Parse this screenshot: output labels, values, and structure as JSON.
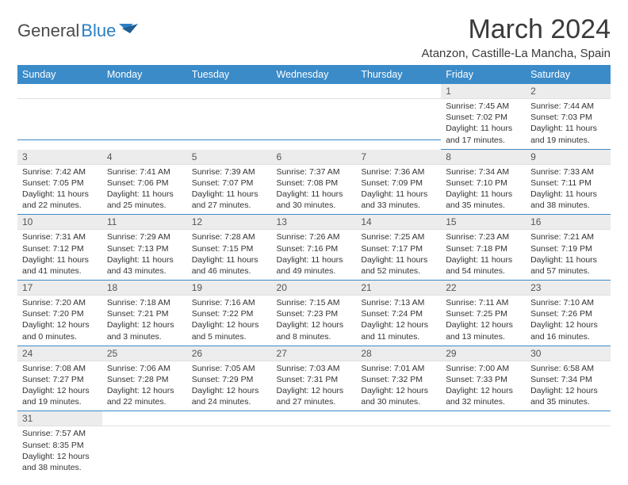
{
  "brand": {
    "part1": "General",
    "part2": "Blue"
  },
  "title": "March 2024",
  "location": "Atanzon, Castille-La Mancha, Spain",
  "colors": {
    "header_bg": "#3b8bc9",
    "header_fg": "#ffffff",
    "daynum_bg": "#ececec",
    "rule": "#3b8bc9",
    "text": "#333333"
  },
  "weekdays": [
    "Sunday",
    "Monday",
    "Tuesday",
    "Wednesday",
    "Thursday",
    "Friday",
    "Saturday"
  ],
  "weeks": [
    [
      null,
      null,
      null,
      null,
      null,
      {
        "n": "1",
        "sr": "7:45 AM",
        "ss": "7:02 PM",
        "dl": "11 hours and 17 minutes."
      },
      {
        "n": "2",
        "sr": "7:44 AM",
        "ss": "7:03 PM",
        "dl": "11 hours and 19 minutes."
      }
    ],
    [
      {
        "n": "3",
        "sr": "7:42 AM",
        "ss": "7:05 PM",
        "dl": "11 hours and 22 minutes."
      },
      {
        "n": "4",
        "sr": "7:41 AM",
        "ss": "7:06 PM",
        "dl": "11 hours and 25 minutes."
      },
      {
        "n": "5",
        "sr": "7:39 AM",
        "ss": "7:07 PM",
        "dl": "11 hours and 27 minutes."
      },
      {
        "n": "6",
        "sr": "7:37 AM",
        "ss": "7:08 PM",
        "dl": "11 hours and 30 minutes."
      },
      {
        "n": "7",
        "sr": "7:36 AM",
        "ss": "7:09 PM",
        "dl": "11 hours and 33 minutes."
      },
      {
        "n": "8",
        "sr": "7:34 AM",
        "ss": "7:10 PM",
        "dl": "11 hours and 35 minutes."
      },
      {
        "n": "9",
        "sr": "7:33 AM",
        "ss": "7:11 PM",
        "dl": "11 hours and 38 minutes."
      }
    ],
    [
      {
        "n": "10",
        "sr": "7:31 AM",
        "ss": "7:12 PM",
        "dl": "11 hours and 41 minutes."
      },
      {
        "n": "11",
        "sr": "7:29 AM",
        "ss": "7:13 PM",
        "dl": "11 hours and 43 minutes."
      },
      {
        "n": "12",
        "sr": "7:28 AM",
        "ss": "7:15 PM",
        "dl": "11 hours and 46 minutes."
      },
      {
        "n": "13",
        "sr": "7:26 AM",
        "ss": "7:16 PM",
        "dl": "11 hours and 49 minutes."
      },
      {
        "n": "14",
        "sr": "7:25 AM",
        "ss": "7:17 PM",
        "dl": "11 hours and 52 minutes."
      },
      {
        "n": "15",
        "sr": "7:23 AM",
        "ss": "7:18 PM",
        "dl": "11 hours and 54 minutes."
      },
      {
        "n": "16",
        "sr": "7:21 AM",
        "ss": "7:19 PM",
        "dl": "11 hours and 57 minutes."
      }
    ],
    [
      {
        "n": "17",
        "sr": "7:20 AM",
        "ss": "7:20 PM",
        "dl": "12 hours and 0 minutes."
      },
      {
        "n": "18",
        "sr": "7:18 AM",
        "ss": "7:21 PM",
        "dl": "12 hours and 3 minutes."
      },
      {
        "n": "19",
        "sr": "7:16 AM",
        "ss": "7:22 PM",
        "dl": "12 hours and 5 minutes."
      },
      {
        "n": "20",
        "sr": "7:15 AM",
        "ss": "7:23 PM",
        "dl": "12 hours and 8 minutes."
      },
      {
        "n": "21",
        "sr": "7:13 AM",
        "ss": "7:24 PM",
        "dl": "12 hours and 11 minutes."
      },
      {
        "n": "22",
        "sr": "7:11 AM",
        "ss": "7:25 PM",
        "dl": "12 hours and 13 minutes."
      },
      {
        "n": "23",
        "sr": "7:10 AM",
        "ss": "7:26 PM",
        "dl": "12 hours and 16 minutes."
      }
    ],
    [
      {
        "n": "24",
        "sr": "7:08 AM",
        "ss": "7:27 PM",
        "dl": "12 hours and 19 minutes."
      },
      {
        "n": "25",
        "sr": "7:06 AM",
        "ss": "7:28 PM",
        "dl": "12 hours and 22 minutes."
      },
      {
        "n": "26",
        "sr": "7:05 AM",
        "ss": "7:29 PM",
        "dl": "12 hours and 24 minutes."
      },
      {
        "n": "27",
        "sr": "7:03 AM",
        "ss": "7:31 PM",
        "dl": "12 hours and 27 minutes."
      },
      {
        "n": "28",
        "sr": "7:01 AM",
        "ss": "7:32 PM",
        "dl": "12 hours and 30 minutes."
      },
      {
        "n": "29",
        "sr": "7:00 AM",
        "ss": "7:33 PM",
        "dl": "12 hours and 32 minutes."
      },
      {
        "n": "30",
        "sr": "6:58 AM",
        "ss": "7:34 PM",
        "dl": "12 hours and 35 minutes."
      }
    ],
    [
      {
        "n": "31",
        "sr": "7:57 AM",
        "ss": "8:35 PM",
        "dl": "12 hours and 38 minutes."
      },
      null,
      null,
      null,
      null,
      null,
      null
    ]
  ],
  "labels": {
    "sunrise": "Sunrise:",
    "sunset": "Sunset:",
    "daylight": "Daylight:"
  }
}
